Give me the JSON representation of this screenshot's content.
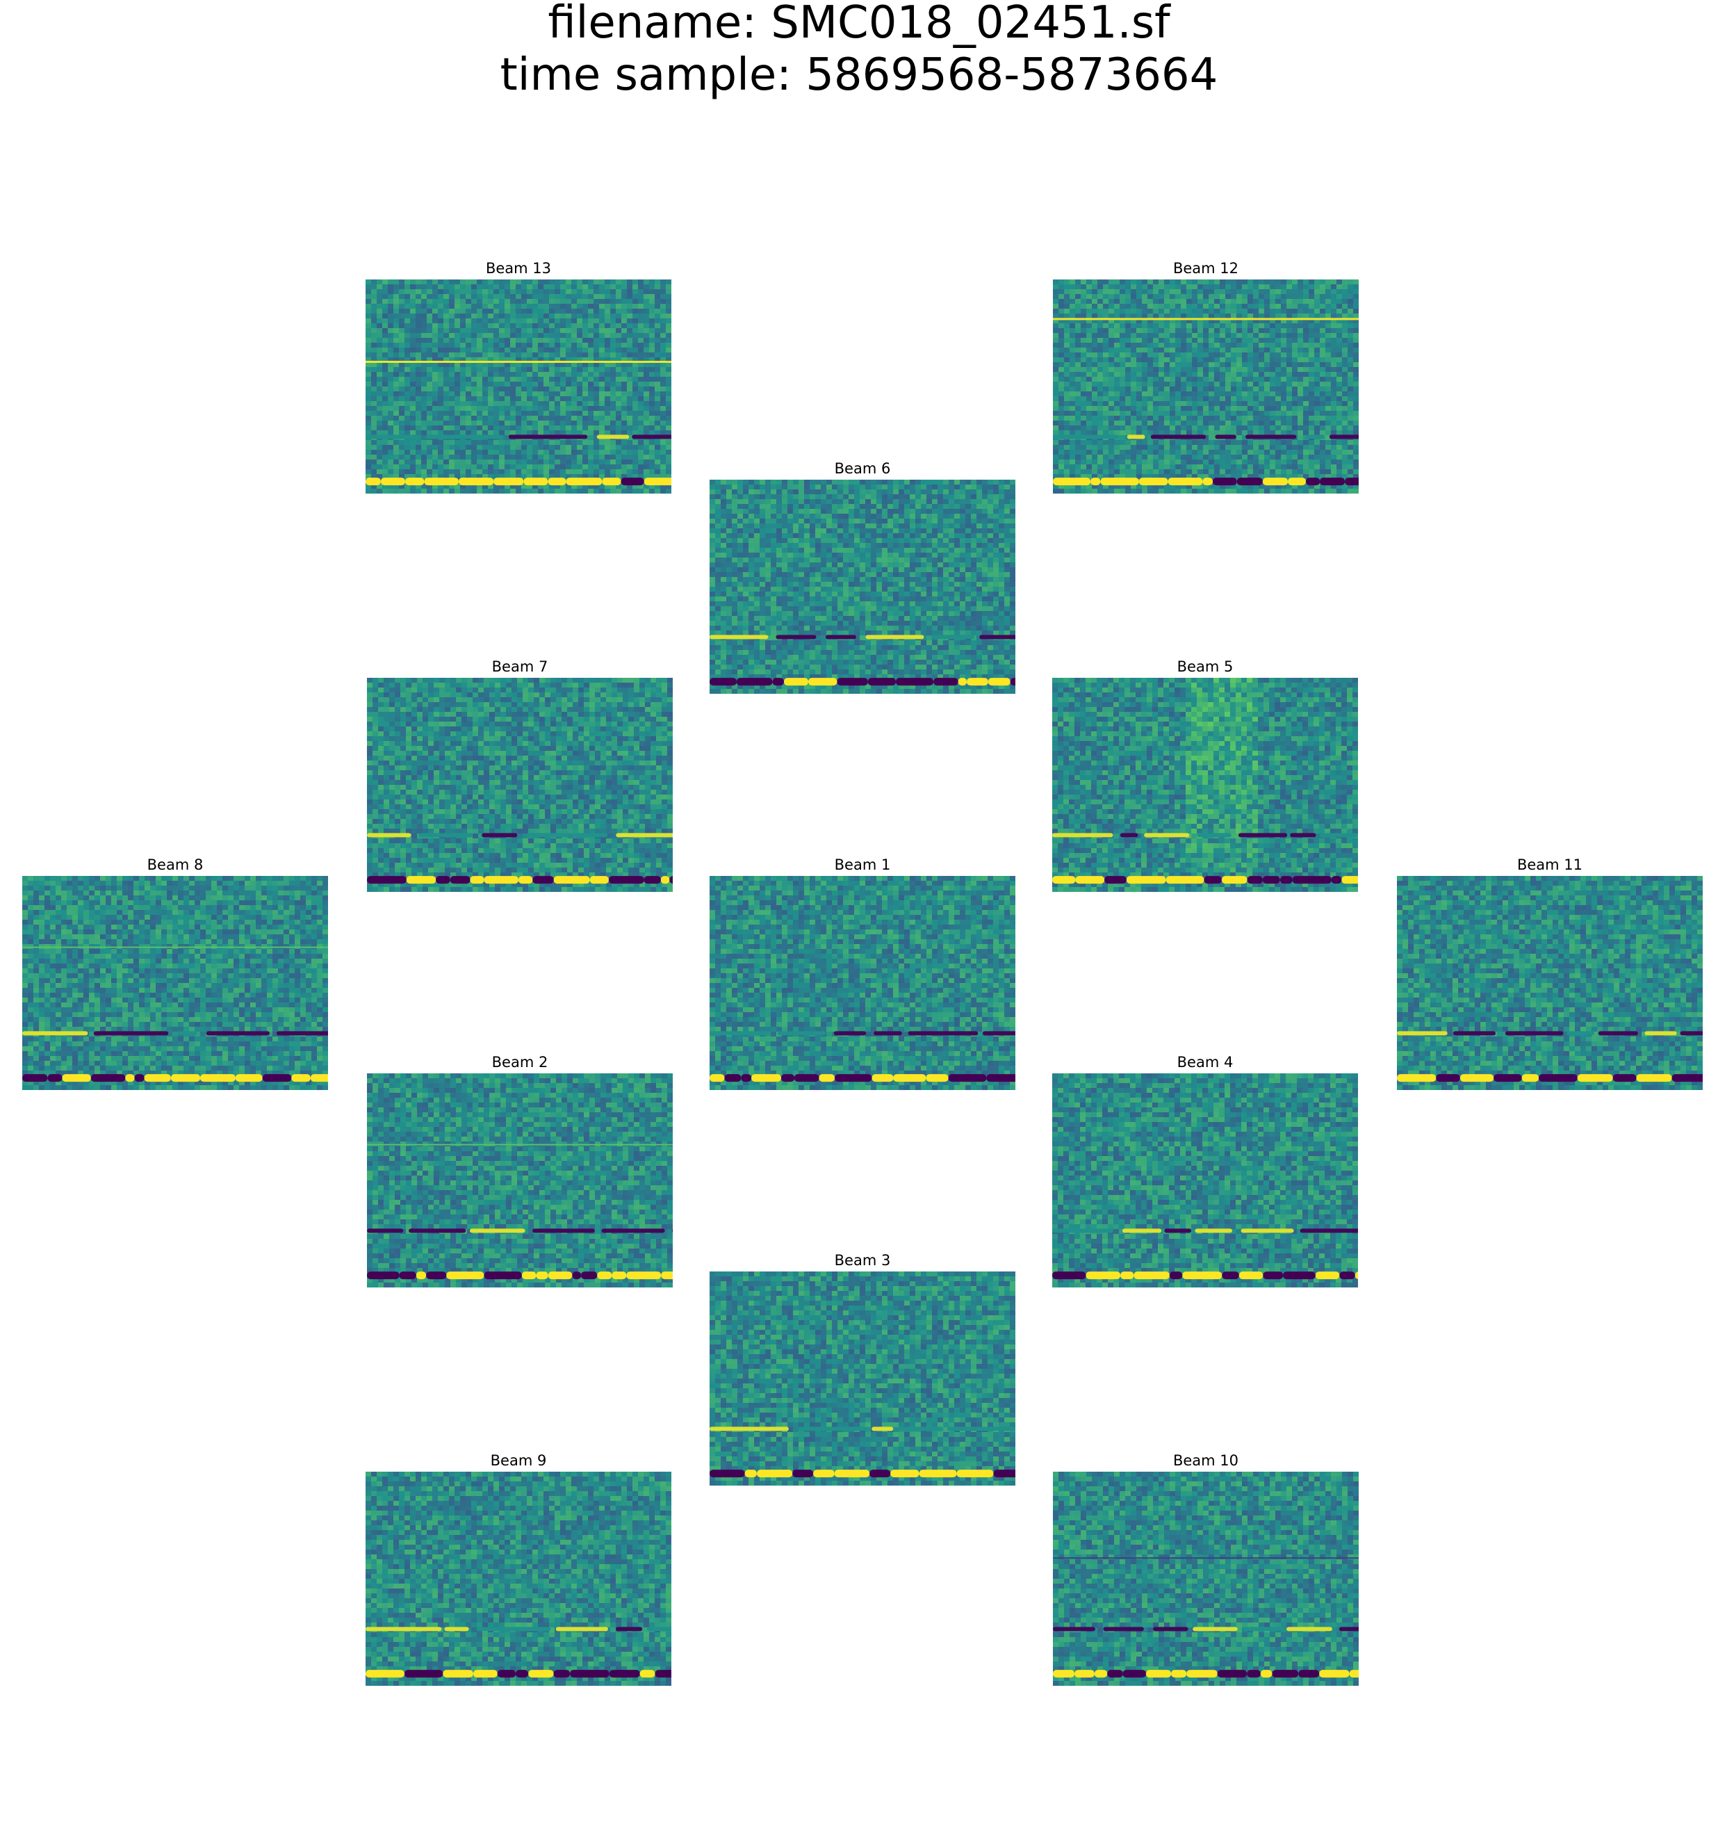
{
  "title_lines": [
    "filename: SMC018_02451.sf",
    "time sample: 5869568-5873664"
  ],
  "chart_data": {
    "type": "heatmap",
    "colormap": "viridis",
    "colors": {
      "low": "#440154",
      "mid": "#21908d",
      "high": "#fde725"
    },
    "panels": [
      {
        "name": "Beam 13",
        "lines": [
          {
            "pos": 0.38,
            "kind": "bright-line"
          }
        ]
      },
      {
        "name": "Beam 12",
        "lines": [
          {
            "pos": 0.18,
            "kind": "bright-line"
          }
        ]
      },
      {
        "name": "Beam 6",
        "lines": []
      },
      {
        "name": "Beam 7",
        "lines": []
      },
      {
        "name": "Beam 5",
        "lines": [
          {
            "pos": 0.42,
            "kind": "vertical-band"
          }
        ]
      },
      {
        "name": "Beam 8",
        "lines": [
          {
            "pos": 0.33,
            "kind": "faint-line"
          }
        ]
      },
      {
        "name": "Beam 1",
        "lines": []
      },
      {
        "name": "Beam 11",
        "lines": []
      },
      {
        "name": "Beam 2",
        "lines": [
          {
            "pos": 0.33,
            "kind": "faint-line"
          }
        ]
      },
      {
        "name": "Beam 4",
        "lines": []
      },
      {
        "name": "Beam 3",
        "lines": []
      },
      {
        "name": "Beam 9",
        "lines": []
      },
      {
        "name": "Beam 10",
        "lines": [
          {
            "pos": 0.4,
            "kind": "dark-line"
          }
        ]
      }
    ]
  }
}
